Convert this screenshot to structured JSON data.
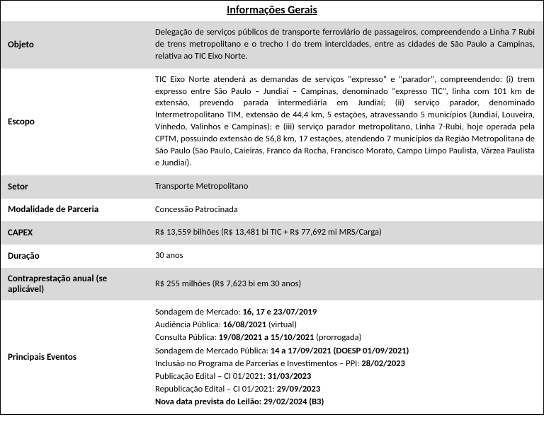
{
  "title": "Informações Gerais",
  "rows": [
    {
      "label": "Objeto",
      "value": "Delegação de serviços públicos de transporte ferroviário de passageiros, compreendendo a Linha 7 Rubi de trens metropolitano e o trecho I do trem intercidades, entre as cidades de São Paulo a Campinas, relativa ao TIC Eixo Norte.",
      "shaded": true
    },
    {
      "label": "Escopo",
      "value": "TIC Eixo Norte atenderá as demandas de serviços \"expresso\" e \"parador\", compreendendo: (i) trem expresso entre São Paulo – Jundiaí – Campinas, denominado \"expresso TIC\", linha com 101 km de extensão, prevendo parada intermediária em Jundiaí; (ii) serviço parador, denominado Intermetropolitano TIM, extensão de 44,4 km, 5 estações, atravessando 5 municípios (Jundiaí, Louveira, Vinhedo, Valinhos e Campinas); e (iii) serviço parador metropolitano, Linha 7-Rubi, hoje operada pela CPTM, possuindo extensão de 56,8 km, 17 estações, atendendo 7 municípios da Região Metropolitana de São Paulo (São Paulo, Caieiras, Franco da Rocha, Francisco Morato, Campo Limpo Paulista, Várzea Paulista e Jundiaí).",
      "shaded": false
    },
    {
      "label": "Setor",
      "value": "Transporte Metropolitano",
      "shaded": true
    },
    {
      "label": "Modalidade de Parceria",
      "value": "Concessão Patrocinada",
      "shaded": false
    },
    {
      "label": "CAPEX",
      "value": "R$ 13,559 bilhões (R$ 13,481 bi TIC + R$ 77,692 mi MRS/Carga)",
      "shaded": true
    },
    {
      "label": "Duração",
      "value": "30 anos",
      "shaded": false
    },
    {
      "label": "Contraprestação anual (se aplicável)",
      "value": "R$ 255 milhões (R$ 7,623 bi em 30 anos)",
      "shaded": true
    }
  ],
  "events_label": "Principais Eventos",
  "events": [
    {
      "prefix": "Sondagem de Mercado: ",
      "bold": "16, 17 e 23/07/2019",
      "suffix": ""
    },
    {
      "prefix": "Audiência Pública: ",
      "bold": "16/08/2021",
      "suffix": "  (virtual)"
    },
    {
      "prefix": "Consulta Pública: ",
      "bold": "19/08/2021  a 15/10/2021",
      "suffix": "   (prorrogada)"
    },
    {
      "prefix": "Sondagem de Mercado Pública: ",
      "bold": "14 a 17/09/2021  (DOESP 01/09/2021)",
      "suffix": ""
    },
    {
      "prefix": "Inclusão no Programa de Parcerias e Investimentos – PPI: ",
      "bold": "28/02/2023",
      "suffix": ""
    },
    {
      "prefix": "Publicação Edital – CI 01/2021:  ",
      "bold": "31/03/2023",
      "suffix": ""
    },
    {
      "prefix": "Republicação Edital – CI 01/2021: ",
      "bold": "29/09/2023",
      "suffix": ""
    },
    {
      "prefix_bold": "Nova data prevista do Leilão: 29/02/2024  (B3)",
      "bold": "",
      "suffix": ""
    }
  ],
  "colors": {
    "shaded_bg": "#d9d9d9",
    "border": "#000000",
    "text": "#000000",
    "bg": "#ffffff"
  },
  "typography": {
    "title_fontsize": 16,
    "label_fontsize": 13,
    "value_fontsize": 12.5,
    "font_family": "Calibri"
  }
}
